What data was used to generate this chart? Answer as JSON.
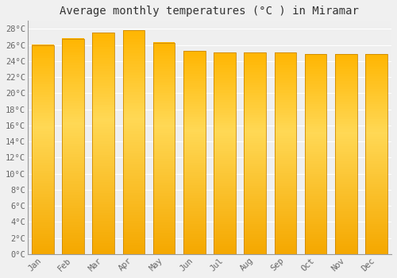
{
  "title": "Average monthly temperatures (°C ) in Miramar",
  "months": [
    "Jan",
    "Feb",
    "Mar",
    "Apr",
    "May",
    "Jun",
    "Jul",
    "Aug",
    "Sep",
    "Oct",
    "Nov",
    "Dec"
  ],
  "temperatures": [
    26.0,
    26.8,
    27.5,
    27.8,
    26.3,
    25.3,
    25.1,
    25.1,
    25.1,
    24.9,
    24.9,
    24.9
  ],
  "ylim": [
    0,
    29
  ],
  "yticks": [
    0,
    2,
    4,
    6,
    8,
    10,
    12,
    14,
    16,
    18,
    20,
    22,
    24,
    26,
    28
  ],
  "ytick_labels": [
    "0°C",
    "2°C",
    "4°C",
    "6°C",
    "8°C",
    "10°C",
    "12°C",
    "14°C",
    "16°C",
    "18°C",
    "20°C",
    "22°C",
    "24°C",
    "26°C",
    "28°C"
  ],
  "bar_color_bottom": "#F5A800",
  "bar_color_mid": "#FFD040",
  "bar_color_top": "#FFC020",
  "background_color": "#F0F0F0",
  "plot_bg_color": "#EFEFEF",
  "grid_color": "#FFFFFF",
  "title_fontsize": 10,
  "tick_fontsize": 7.5,
  "font_family": "monospace",
  "bar_edge_color": "#CC8800",
  "bar_width": 0.72
}
